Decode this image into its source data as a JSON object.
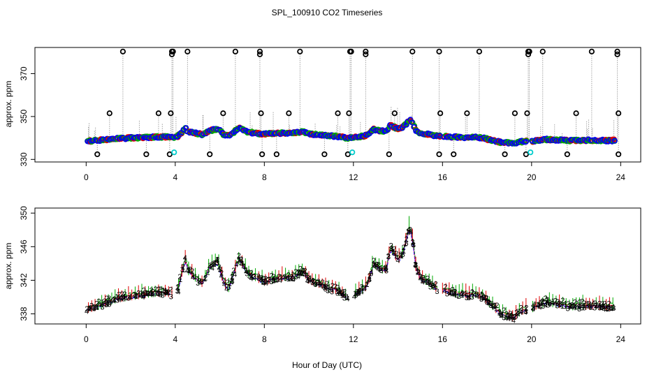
{
  "chart_data": {
    "title": "SPL_100910  CO2 Timeseries",
    "xlabel": "Hour of Day (UTC)",
    "colors": {
      "raw": "#000000",
      "cal": "#00cccc",
      "s1": "#dd0000",
      "s2": "#00aa00",
      "s3": "#0000ee",
      "s4": "#aa00aa",
      "drop": "#9a9a9a"
    },
    "panels": [
      {
        "type": "scatter",
        "ylabel": "approx. ppm",
        "xlim": [
          -2.3,
          24.9
        ],
        "ylim": [
          328.8,
          382.2
        ],
        "xticks": [
          0,
          4,
          8,
          12,
          16,
          20,
          24
        ],
        "yticks": [
          330,
          350,
          370
        ],
        "ytick_labels": [
          "330",
          "350",
          "370"
        ],
        "series_symbol": "o",
        "outliers_high": [
          1.65,
          3.85,
          3.9,
          4.55,
          6.7,
          7.8,
          9.6,
          11.85,
          11.9,
          12.55,
          14.65,
          15.85,
          17.65,
          19.85,
          19.9,
          20.5,
          22.7,
          23.85
        ],
        "outliers_mid": [
          1.05,
          3.25,
          3.8,
          6.15,
          7.85,
          9.1,
          11.3,
          11.8,
          13.85,
          15.9,
          17.1,
          19.25,
          19.8,
          22.0,
          23.9
        ],
        "outliers_low": [
          0.5,
          2.7,
          3.75,
          5.55,
          7.9,
          8.55,
          10.7,
          11.75,
          13.6,
          15.85,
          16.5,
          18.8,
          19.75,
          21.6,
          23.9
        ],
        "cal_points": [
          {
            "x": 3.95,
            "y": 333.3
          },
          {
            "x": 11.95,
            "y": 333.3
          },
          {
            "x": 19.95,
            "y": 333.3
          }
        ]
      },
      {
        "type": "line",
        "ylabel": "approx. ppm",
        "xlim": [
          -2.3,
          24.9
        ],
        "ylim": [
          336.8,
          350.6
        ],
        "xticks": [
          0,
          4,
          8,
          12,
          16,
          20,
          24
        ],
        "yticks": [
          338,
          342,
          346,
          350
        ],
        "ytick_labels": [
          "338",
          "342",
          "346",
          "350"
        ],
        "series_symbols": [
          "1",
          "2",
          "3",
          "4"
        ]
      }
    ],
    "series": [
      {
        "name": "CO2",
        "x": [
          0.05,
          0.5,
          1.0,
          1.5,
          2.0,
          2.5,
          3.0,
          3.5,
          3.85,
          4.05,
          4.2,
          4.35,
          4.45,
          4.6,
          4.8,
          5.0,
          5.2,
          5.4,
          5.55,
          5.7,
          5.9,
          6.05,
          6.2,
          6.4,
          6.6,
          6.75,
          6.9,
          7.05,
          7.2,
          7.4,
          7.6,
          7.8,
          8.0,
          8.3,
          8.6,
          8.9,
          9.2,
          9.5,
          9.75,
          10.0,
          10.3,
          10.6,
          10.9,
          11.2,
          11.5,
          11.75,
          12.0,
          12.2,
          12.4,
          12.6,
          12.75,
          12.9,
          13.1,
          13.3,
          13.5,
          13.65,
          13.85,
          14.0,
          14.2,
          14.35,
          14.5,
          14.65,
          14.8,
          15.0,
          15.3,
          15.6,
          15.85,
          16.0,
          16.3,
          16.6,
          16.9,
          17.2,
          17.5,
          17.8,
          18.1,
          18.4,
          18.6,
          18.8,
          19.0,
          19.2,
          19.5,
          19.75,
          20.0,
          20.2,
          20.4,
          20.6,
          20.9,
          21.2,
          21.5,
          21.8,
          22.1,
          22.4,
          22.7,
          23.0,
          23.3,
          23.6,
          23.75
        ],
        "y": [
          338.5,
          338.8,
          339.4,
          339.8,
          340.0,
          340.2,
          340.4,
          340.5,
          340.3,
          340.4,
          341.5,
          343.5,
          344.5,
          343.0,
          342.5,
          342.0,
          341.6,
          342.5,
          343.5,
          343.8,
          344.2,
          342.8,
          341.5,
          341.0,
          342.5,
          343.8,
          344.5,
          343.8,
          343.0,
          342.5,
          342.3,
          342.0,
          341.8,
          342.0,
          342.2,
          342.3,
          342.3,
          342.6,
          343.0,
          342.0,
          341.6,
          341.4,
          341.0,
          340.8,
          340.3,
          339.8,
          340.2,
          340.5,
          340.8,
          341.2,
          342.5,
          344.0,
          343.5,
          343.2,
          343.3,
          346.0,
          345.0,
          344.3,
          345.0,
          346.5,
          348.5,
          347.0,
          343.5,
          342.2,
          341.8,
          341.2,
          340.8,
          340.8,
          340.6,
          340.4,
          340.3,
          340.2,
          340.3,
          340.0,
          339.2,
          338.5,
          338.0,
          337.8,
          337.6,
          337.5,
          338.2,
          338.5,
          338.5,
          338.9,
          339.0,
          339.3,
          339.2,
          339.1,
          339.0,
          338.8,
          338.9,
          338.9,
          338.9,
          338.9,
          338.8,
          338.8,
          338.9
        ]
      }
    ]
  }
}
